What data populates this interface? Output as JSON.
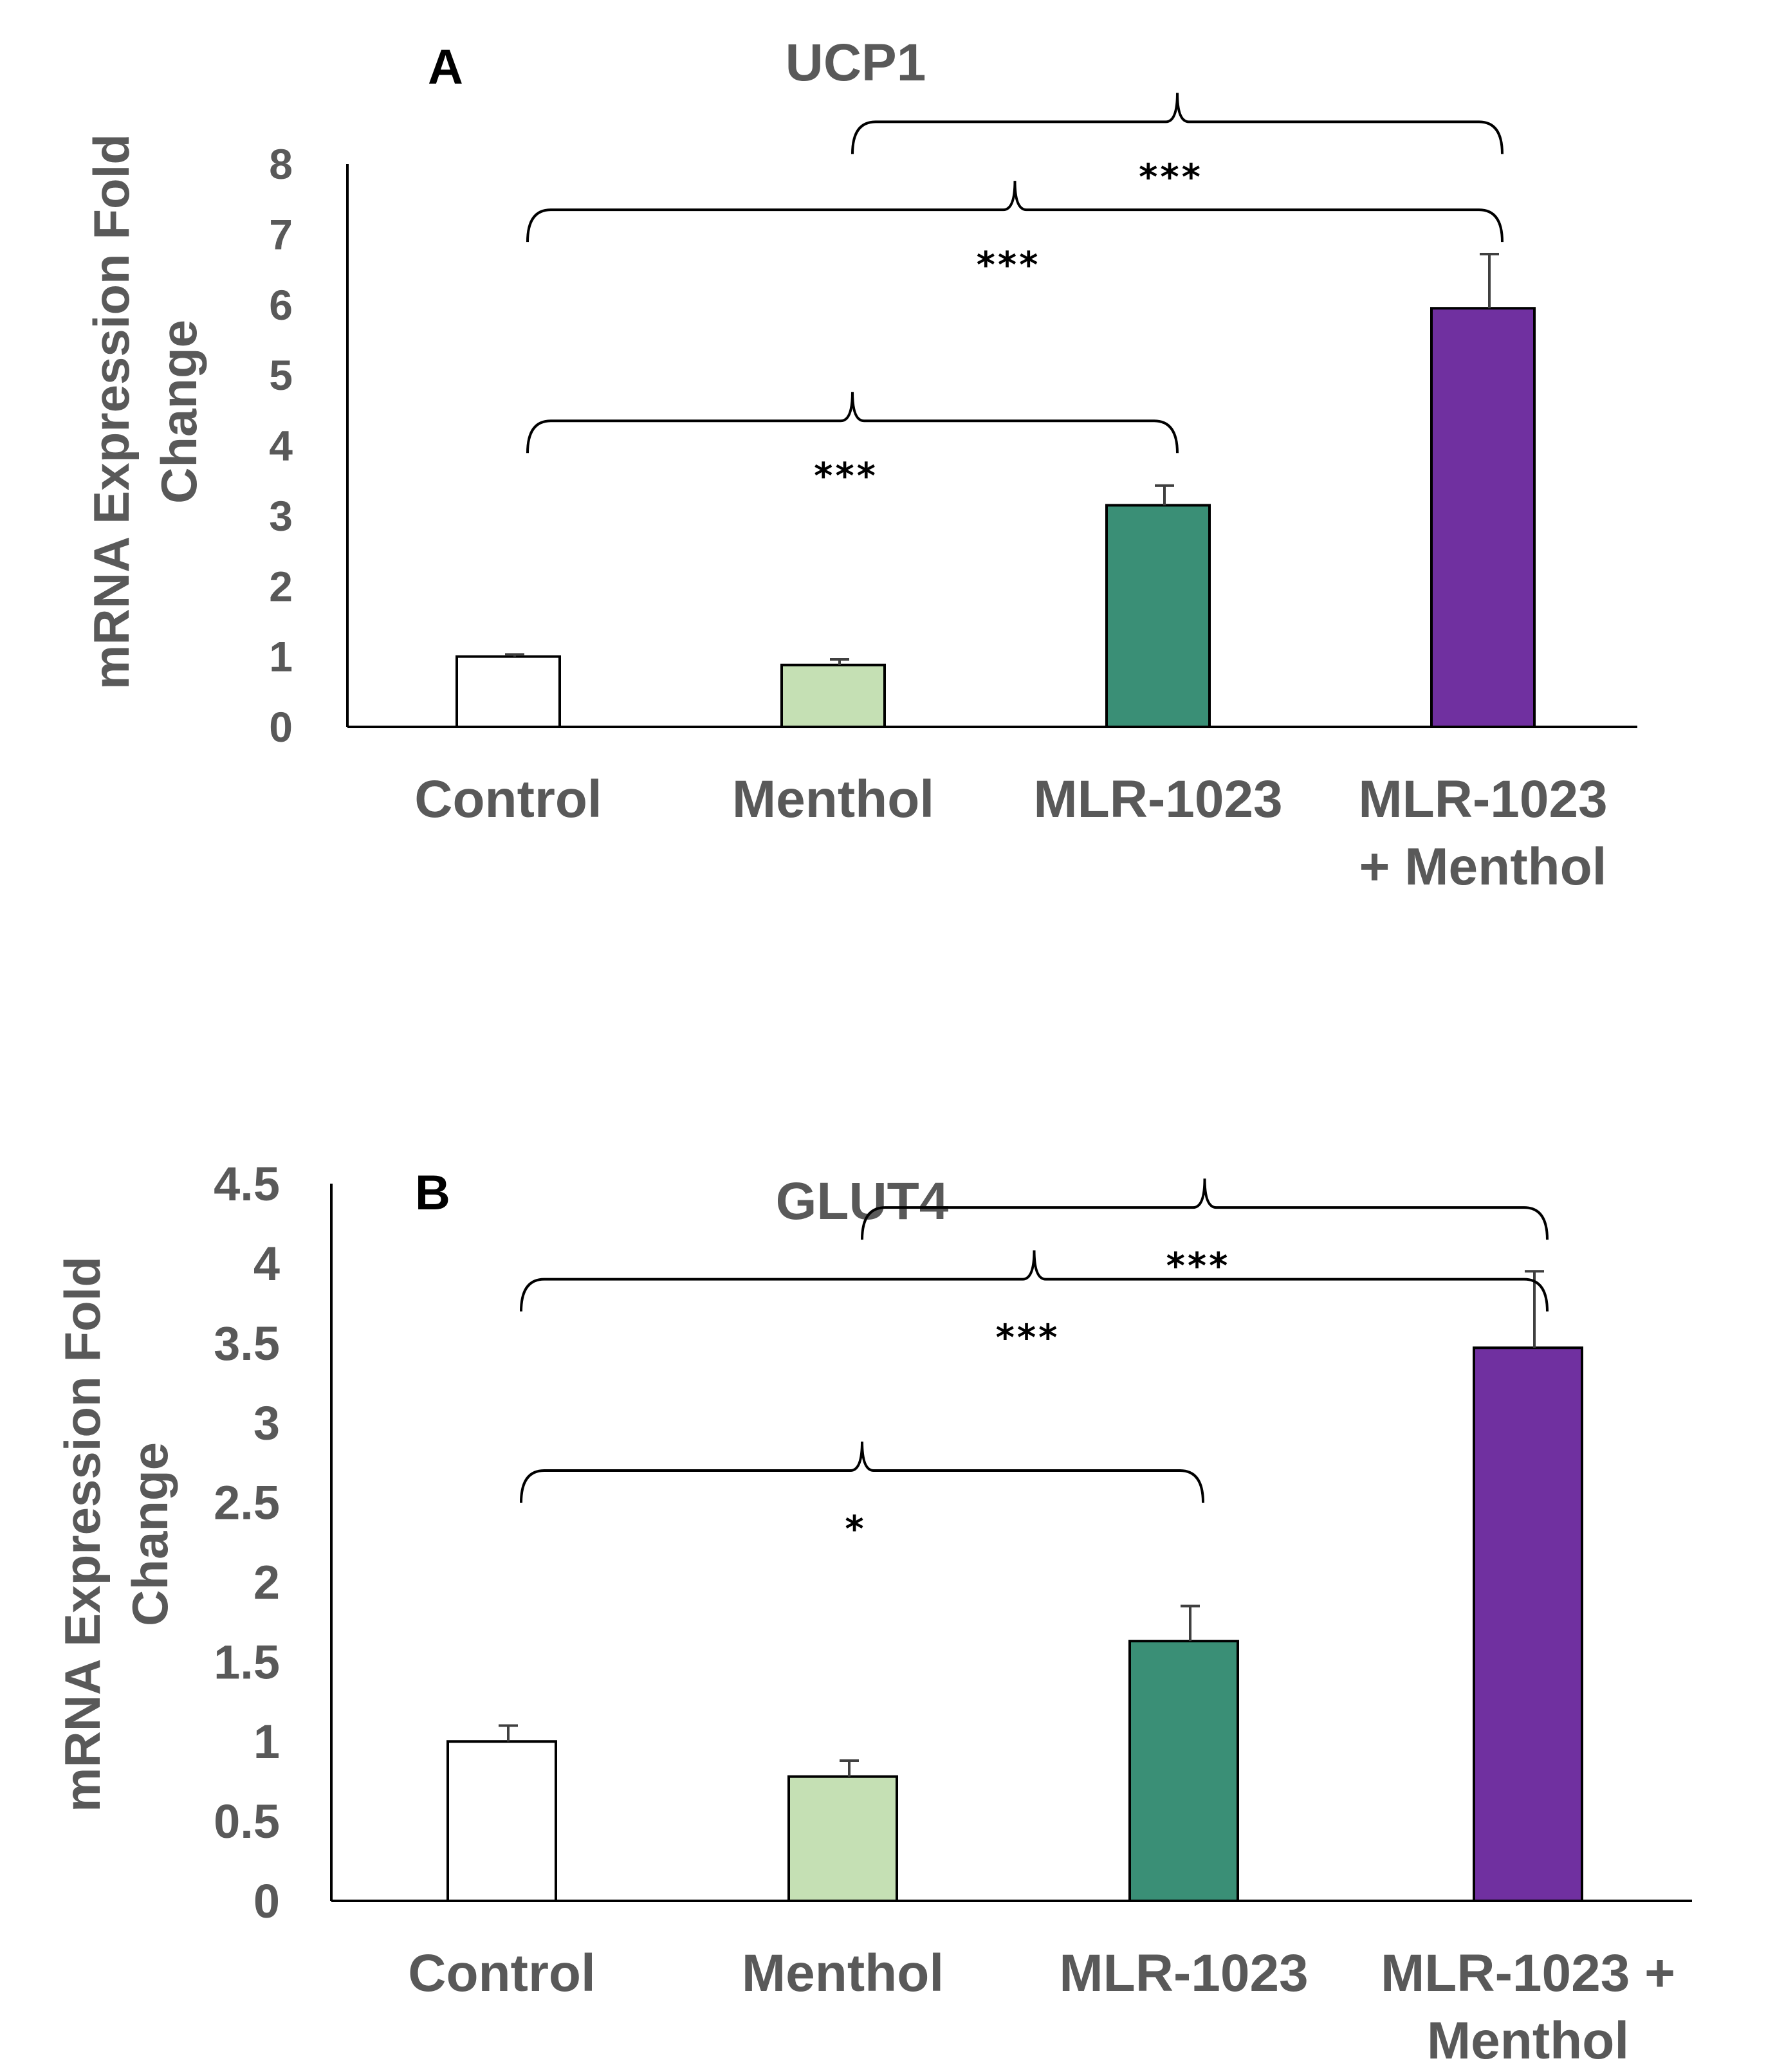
{
  "chart_data": [
    {
      "type": "bar",
      "panel_label": "A",
      "title": "UCP1",
      "ylabel_lines": [
        "mRNA Expression Fold",
        "Change"
      ],
      "xlabel": "",
      "ylim": [
        0,
        8
      ],
      "yticks": [
        "0",
        "1",
        "2",
        "3",
        "4",
        "5",
        "6",
        "7",
        "8"
      ],
      "categories": [
        [
          "Control"
        ],
        [
          "Menthol"
        ],
        [
          "MLR-1023"
        ],
        [
          "MLR-1023",
          "+ Menthol"
        ]
      ],
      "values": [
        1.0,
        0.88,
        3.15,
        5.95
      ],
      "errors": [
        0.03,
        0.08,
        0.28,
        0.77
      ],
      "colors": [
        "#ffffff",
        "#c5e0b4",
        "#3a8f76",
        "#7030a0"
      ],
      "significance": [
        {
          "from": 0,
          "to": 2,
          "label": "***",
          "y": 4.35
        },
        {
          "from": 0,
          "to": 3,
          "label": "***",
          "y": 7.35
        },
        {
          "from": 1,
          "to": 3,
          "label": "***",
          "y": 8.6
        }
      ]
    },
    {
      "type": "bar",
      "panel_label": "B",
      "title": "GLUT4",
      "ylabel_lines": [
        "mRNA Expression Fold",
        "Change"
      ],
      "xlabel": "",
      "ylim": [
        0,
        4.5
      ],
      "yticks": [
        "0",
        "0.5",
        "1",
        "1.5",
        "2",
        "2.5",
        "3",
        "3.5",
        "4",
        "4.5"
      ],
      "categories": [
        [
          "Control"
        ],
        [
          "Menthol"
        ],
        [
          "MLR-1023"
        ],
        [
          "MLR-1023 +",
          "Menthol"
        ]
      ],
      "values": [
        1.0,
        0.78,
        1.63,
        3.47
      ],
      "errors": [
        0.1,
        0.1,
        0.22,
        0.48
      ],
      "colors": [
        "#ffffff",
        "#c5e0b4",
        "#3a8f76",
        "#7030a0"
      ],
      "significance": [
        {
          "from": 0,
          "to": 2,
          "label": "*",
          "y": 2.7
        },
        {
          "from": 0,
          "to": 3,
          "label": "***",
          "y": 3.9
        },
        {
          "from": 1,
          "to": 3,
          "label": "***",
          "y": 4.35
        }
      ]
    }
  ]
}
